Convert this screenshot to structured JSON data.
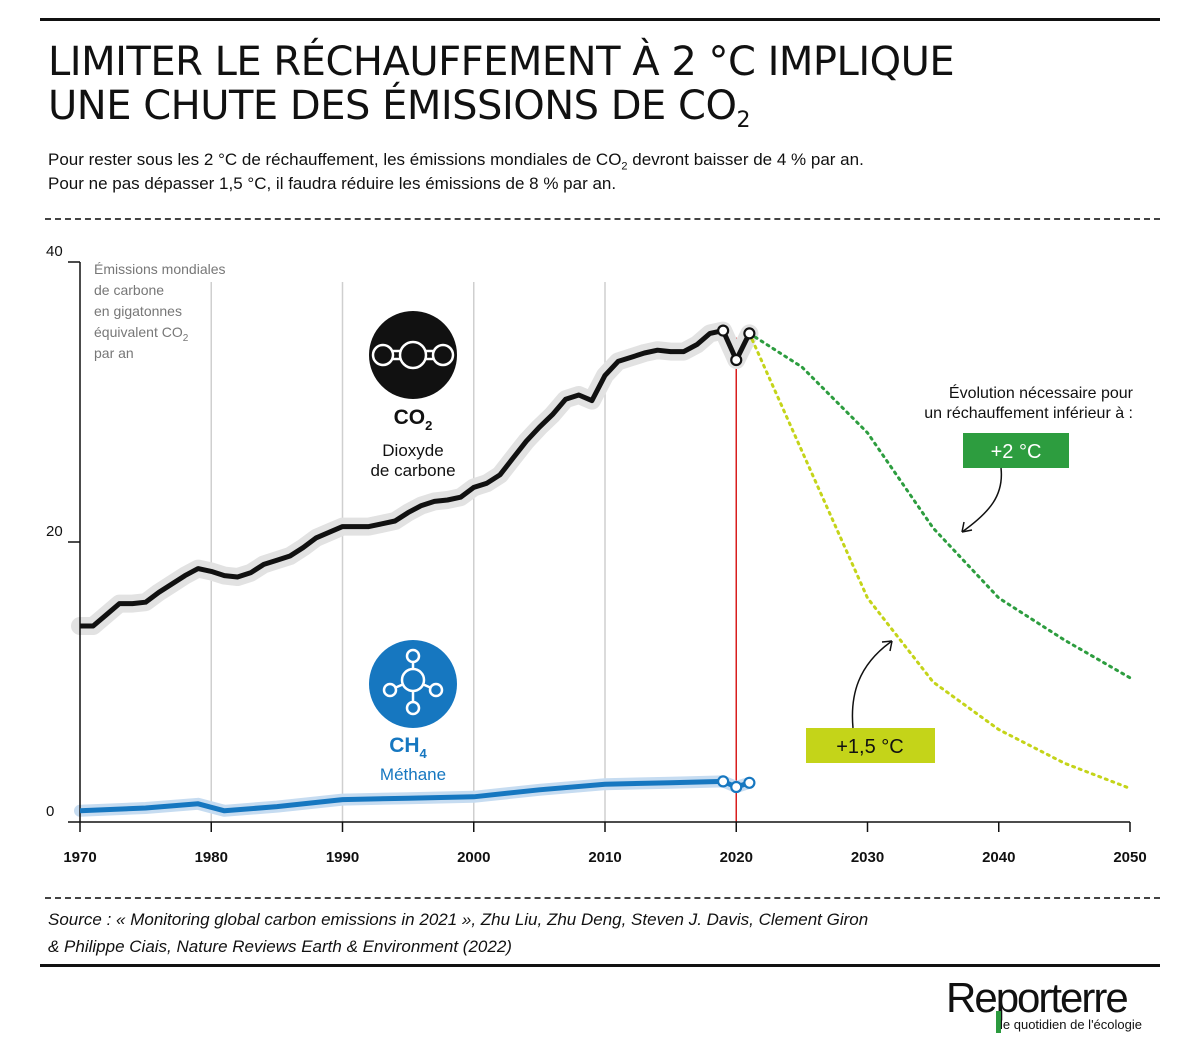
{
  "header": {
    "title_line1": "LIMITER LE RÉCHAUFFEMENT À 2 °C IMPLIQUE",
    "title_line2": "UNE CHUTE DES ÉMISSIONS DE CO",
    "title_sub": "2",
    "subtitle_line1_a": "Pour rester sous les 2 °C de réchauffement, les émissions mondiales de CO",
    "subtitle_line1_sub": "2",
    "subtitle_line1_b": " devront baisser de 4 % par an.",
    "subtitle_line2": "Pour ne pas dépasser 1,5 °C, il faudra réduire les émissions de 8 % par an."
  },
  "chart_data": {
    "type": "line",
    "title": "",
    "ylabel_lines": [
      "Émissions mondiales",
      "de carbone",
      "en gigatonnes",
      "équivalent CO",
      "par an"
    ],
    "ylabel_sub": "2",
    "xlim": [
      1970,
      2050
    ],
    "ylim": [
      0,
      40
    ],
    "x_ticks": [
      "1970",
      "1980",
      "1990",
      "2000",
      "2010",
      "2020",
      "2030",
      "2040",
      "2050"
    ],
    "y_ticks": [
      "0",
      "20",
      "40"
    ],
    "highlight_year": "2020",
    "grid_years": [
      1980,
      1990,
      2000,
      2010
    ],
    "series": [
      {
        "key": "co2",
        "formula": "CO",
        "formula_sub": "2",
        "name_line1": "Dioxyde",
        "name_line2": "de carbone",
        "color": "#111111",
        "x": [
          1970,
          1971,
          1972,
          1973,
          1974,
          1975,
          1976,
          1977,
          1978,
          1979,
          1980,
          1981,
          1982,
          1983,
          1984,
          1985,
          1986,
          1987,
          1988,
          1989,
          1990,
          1991,
          1992,
          1993,
          1994,
          1995,
          1996,
          1997,
          1998,
          1999,
          2000,
          2001,
          2002,
          2003,
          2004,
          2005,
          2006,
          2007,
          2008,
          2009,
          2010,
          2011,
          2012,
          2013,
          2014,
          2015,
          2016,
          2017,
          2018,
          2019,
          2020,
          2021
        ],
        "y": [
          14.0,
          14.0,
          14.8,
          15.6,
          15.6,
          15.7,
          16.4,
          17.0,
          17.6,
          18.1,
          17.9,
          17.6,
          17.5,
          17.8,
          18.4,
          18.7,
          19.0,
          19.6,
          20.3,
          20.7,
          21.1,
          21.1,
          21.1,
          21.3,
          21.5,
          22.1,
          22.6,
          22.9,
          23.0,
          23.2,
          23.9,
          24.2,
          24.8,
          26.0,
          27.2,
          28.2,
          29.1,
          30.2,
          30.5,
          30.1,
          31.9,
          32.9,
          33.2,
          33.5,
          33.7,
          33.6,
          33.6,
          34.1,
          34.9,
          35.1,
          33.0,
          34.9
        ],
        "markers": [
          [
            2019,
            35.1
          ],
          [
            2020,
            33.0
          ],
          [
            2021,
            34.9
          ]
        ]
      },
      {
        "key": "ch4",
        "formula": "CH",
        "formula_sub": "4",
        "name_line1": "Méthane",
        "color": "#1677c0",
        "x": [
          1970,
          1975,
          1979,
          1981,
          1985,
          1990,
          1995,
          2000,
          2005,
          2010,
          2015,
          2019,
          2020,
          2021
        ],
        "y": [
          0.8,
          1.0,
          1.3,
          0.8,
          1.1,
          1.6,
          1.7,
          1.8,
          2.3,
          2.7,
          2.8,
          2.9,
          2.5,
          2.8
        ],
        "markers": [
          [
            2019,
            2.9
          ],
          [
            2020,
            2.5
          ],
          [
            2021,
            2.8
          ]
        ]
      },
      {
        "key": "path2",
        "name": "+2 °C",
        "color": "#2d9d3f",
        "x": [
          2021,
          2025,
          2030,
          2035,
          2040,
          2045,
          2050
        ],
        "y": [
          34.9,
          32.5,
          27.8,
          21.0,
          16.0,
          13.0,
          10.3
        ]
      },
      {
        "key": "path15",
        "name": "+1,5 °C",
        "color": "#c4d419",
        "x": [
          2021,
          2025,
          2030,
          2035,
          2040,
          2045,
          2050
        ],
        "y": [
          34.9,
          26.5,
          16.0,
          10.0,
          6.6,
          4.2,
          2.4
        ]
      }
    ],
    "annotation_lines": [
      "Évolution nécessaire pour",
      "un réchauffement inférieur à :"
    ]
  },
  "footer": {
    "source_line1": "Source : « Monitoring global carbon emissions in 2021 », Zhu Liu, Zhu Deng, Steven J. Davis, Clement Giron",
    "source_line2": "& Philippe Ciais, Nature Reviews Earth & Environment (2022)",
    "logo_word": "Reporterre",
    "logo_tagline": "le quotidien de l'écologie"
  }
}
